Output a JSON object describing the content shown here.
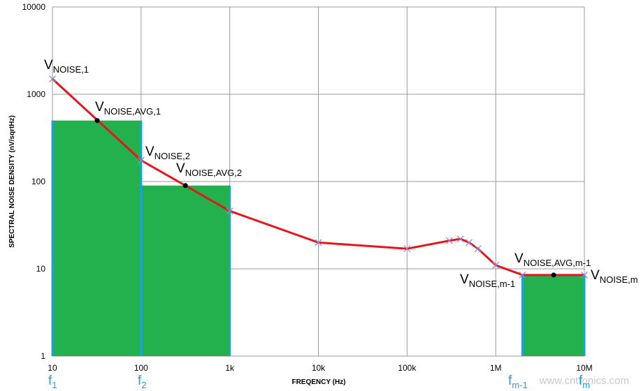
{
  "chart_data": {
    "type": "line",
    "x_label": "FREQENCY (Hz)",
    "y_label": "SPECTRAL NOISE DENSITY  (nV/sqrtHz)",
    "log_x": true,
    "log_y": true,
    "grid": true,
    "xlim": [
      10,
      10000000
    ],
    "ylim": [
      1,
      10000
    ],
    "xticks": [
      10,
      100,
      {
        "value": 1000,
        "label": "1k"
      },
      {
        "value": 10000,
        "label": "10k"
      },
      {
        "value": 100000,
        "label": "100k"
      },
      {
        "value": 1000000,
        "label": "1M"
      },
      {
        "value": 10000000,
        "label": "10M"
      }
    ],
    "yticks": [
      1,
      10,
      100,
      1000,
      10000
    ],
    "series": [
      {
        "color": "#e8141b",
        "marker_color": "#8a8fd6",
        "x": [
          10,
          100,
          1000,
          10000,
          100000,
          300000,
          400000,
          500000,
          630000,
          1000000,
          2000000,
          10000000
        ],
        "values": [
          1500,
          175,
          46,
          20,
          17,
          21,
          22,
          20,
          17,
          11,
          8.5,
          8.5
        ]
      }
    ],
    "averages": {
      "color": "#000000",
      "x": [
        32,
        316,
        4500000
      ],
      "values": [
        500,
        90,
        8.5
      ]
    },
    "bars": {
      "color": "#22b14c",
      "edge_color": "#1ba1e2",
      "ranges": [
        [
          10,
          100
        ],
        [
          100,
          1000
        ],
        [
          2000000,
          10000000
        ]
      ],
      "values": [
        500,
        90,
        8.5
      ]
    },
    "annotations": [
      {
        "text": "V",
        "sub": "NOISE,1"
      },
      {
        "text": "V",
        "sub": "NOISE,AVG,1"
      },
      {
        "text": "V",
        "sub": "NOISE,2"
      },
      {
        "text": "V",
        "sub": "NOISE,AVG,2"
      },
      {
        "text": "V",
        "sub": "NOISE,AVG,m-1"
      },
      {
        "text": "V",
        "sub": "NOISE,m-1"
      },
      {
        "text": "V",
        "sub": "NOISE,m"
      }
    ],
    "frequency_labels": [
      {
        "text": "f",
        "sub": "1"
      },
      {
        "text": "f",
        "sub": "2"
      },
      {
        "text": "f",
        "sub": "m-1"
      },
      {
        "text": "f",
        "sub": "m"
      }
    ],
    "watermark": "www.cntronics.com"
  }
}
